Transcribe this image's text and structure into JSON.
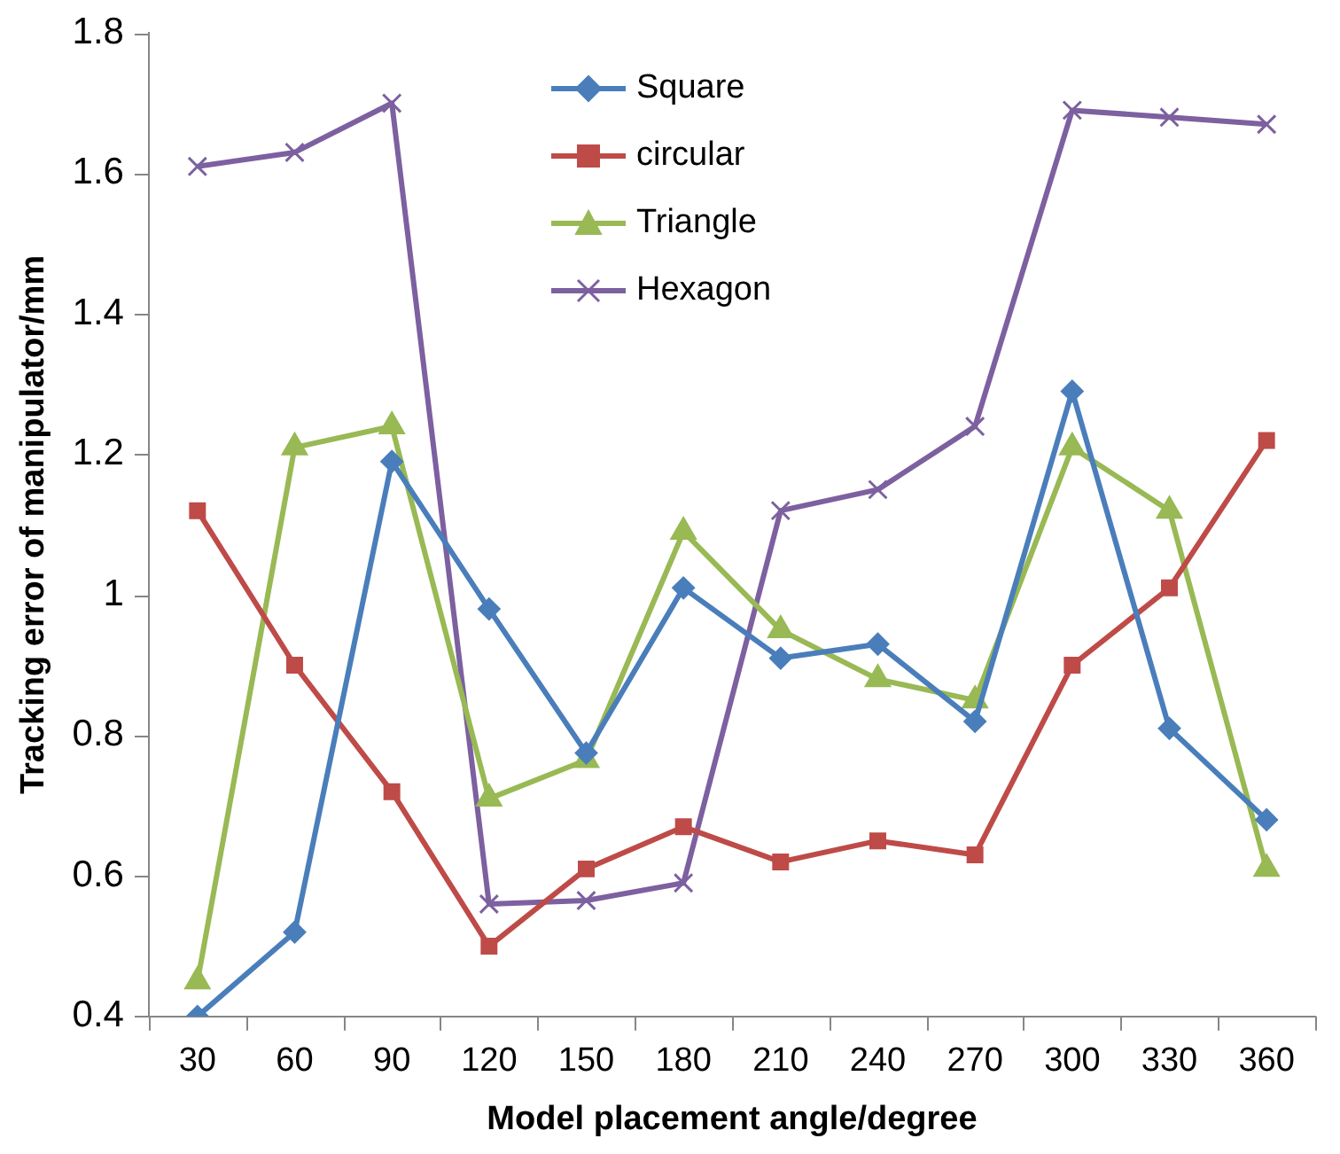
{
  "chart_data": {
    "type": "line",
    "xlabel": "Model placement angle/degree",
    "ylabel": "Tracking error of manipulator/mm",
    "categories": [
      "30",
      "60",
      "90",
      "120",
      "150",
      "180",
      "210",
      "240",
      "270",
      "300",
      "330",
      "360"
    ],
    "ylim": [
      0.4,
      1.8
    ],
    "yticks": [
      0.4,
      0.6,
      0.8,
      {
        "value": 1,
        "label": "1"
      },
      1.2,
      1.4,
      1.6,
      1.8
    ],
    "grid": false,
    "legend": "top",
    "series": [
      {
        "name": "Square",
        "color": "#4a7ebb",
        "marker": "diamond",
        "values": [
          0.4,
          0.52,
          1.19,
          0.98,
          0.775,
          1.01,
          0.91,
          0.93,
          0.82,
          1.29,
          0.81,
          0.68
        ]
      },
      {
        "name": "circular",
        "color": "#be4b48",
        "marker": "square",
        "values": [
          1.12,
          0.9,
          0.72,
          0.5,
          0.61,
          0.67,
          0.62,
          0.65,
          0.63,
          0.9,
          1.01,
          1.22
        ]
      },
      {
        "name": "Triangle",
        "color": "#98b954",
        "marker": "triangle",
        "values": [
          0.45,
          1.21,
          1.24,
          0.71,
          0.765,
          1.09,
          0.95,
          0.88,
          0.85,
          1.21,
          1.12,
          0.61
        ]
      },
      {
        "name": "Hexagon",
        "color": "#7d60a0",
        "marker": "cross",
        "values": [
          1.61,
          1.63,
          1.7,
          0.56,
          0.565,
          0.59,
          1.12,
          1.15,
          1.24,
          1.69,
          1.68,
          1.67
        ]
      }
    ]
  }
}
